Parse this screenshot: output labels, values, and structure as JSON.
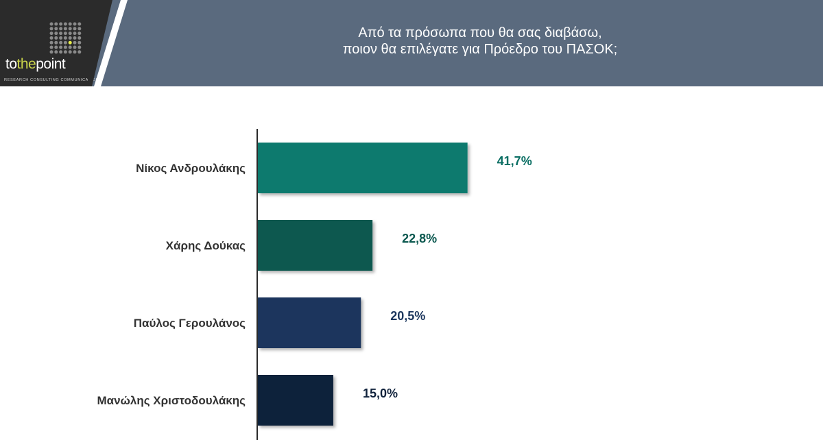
{
  "header": {
    "logo": {
      "word_left": "to",
      "word_mid": "the",
      "word_right": "point",
      "tagline": "RESEARCH CONSULTING COMMUNICATION"
    },
    "question": {
      "line1": "Από τα πρόσωπα που θα σας διαβάσω,",
      "line2": "ποιον θα επιλέγατε για Πρόεδρο του ΠΑΣΟΚ;"
    }
  },
  "chart_data": {
    "type": "bar",
    "orientation": "horizontal",
    "categories": [
      "Νίκος Ανδρουλάκης",
      "Χάρης Δούκας",
      "Παύλος Γερουλάνος",
      "Μανώλης Χριστοδουλάκης"
    ],
    "values": [
      41.7,
      22.8,
      20.5,
      15.0
    ],
    "value_labels": [
      "41,7%",
      "22,8%",
      "20,5%",
      "15,0%"
    ],
    "bar_colors": [
      "#0a7a6e",
      "#0b584f",
      "#1b365d",
      "#0f213b"
    ],
    "label_colors": [
      "#0a6e63",
      "#0b584f",
      "#1b365d",
      "#0f213b"
    ],
    "xlim": [
      0,
      100
    ],
    "grid": false,
    "legend": "none"
  }
}
